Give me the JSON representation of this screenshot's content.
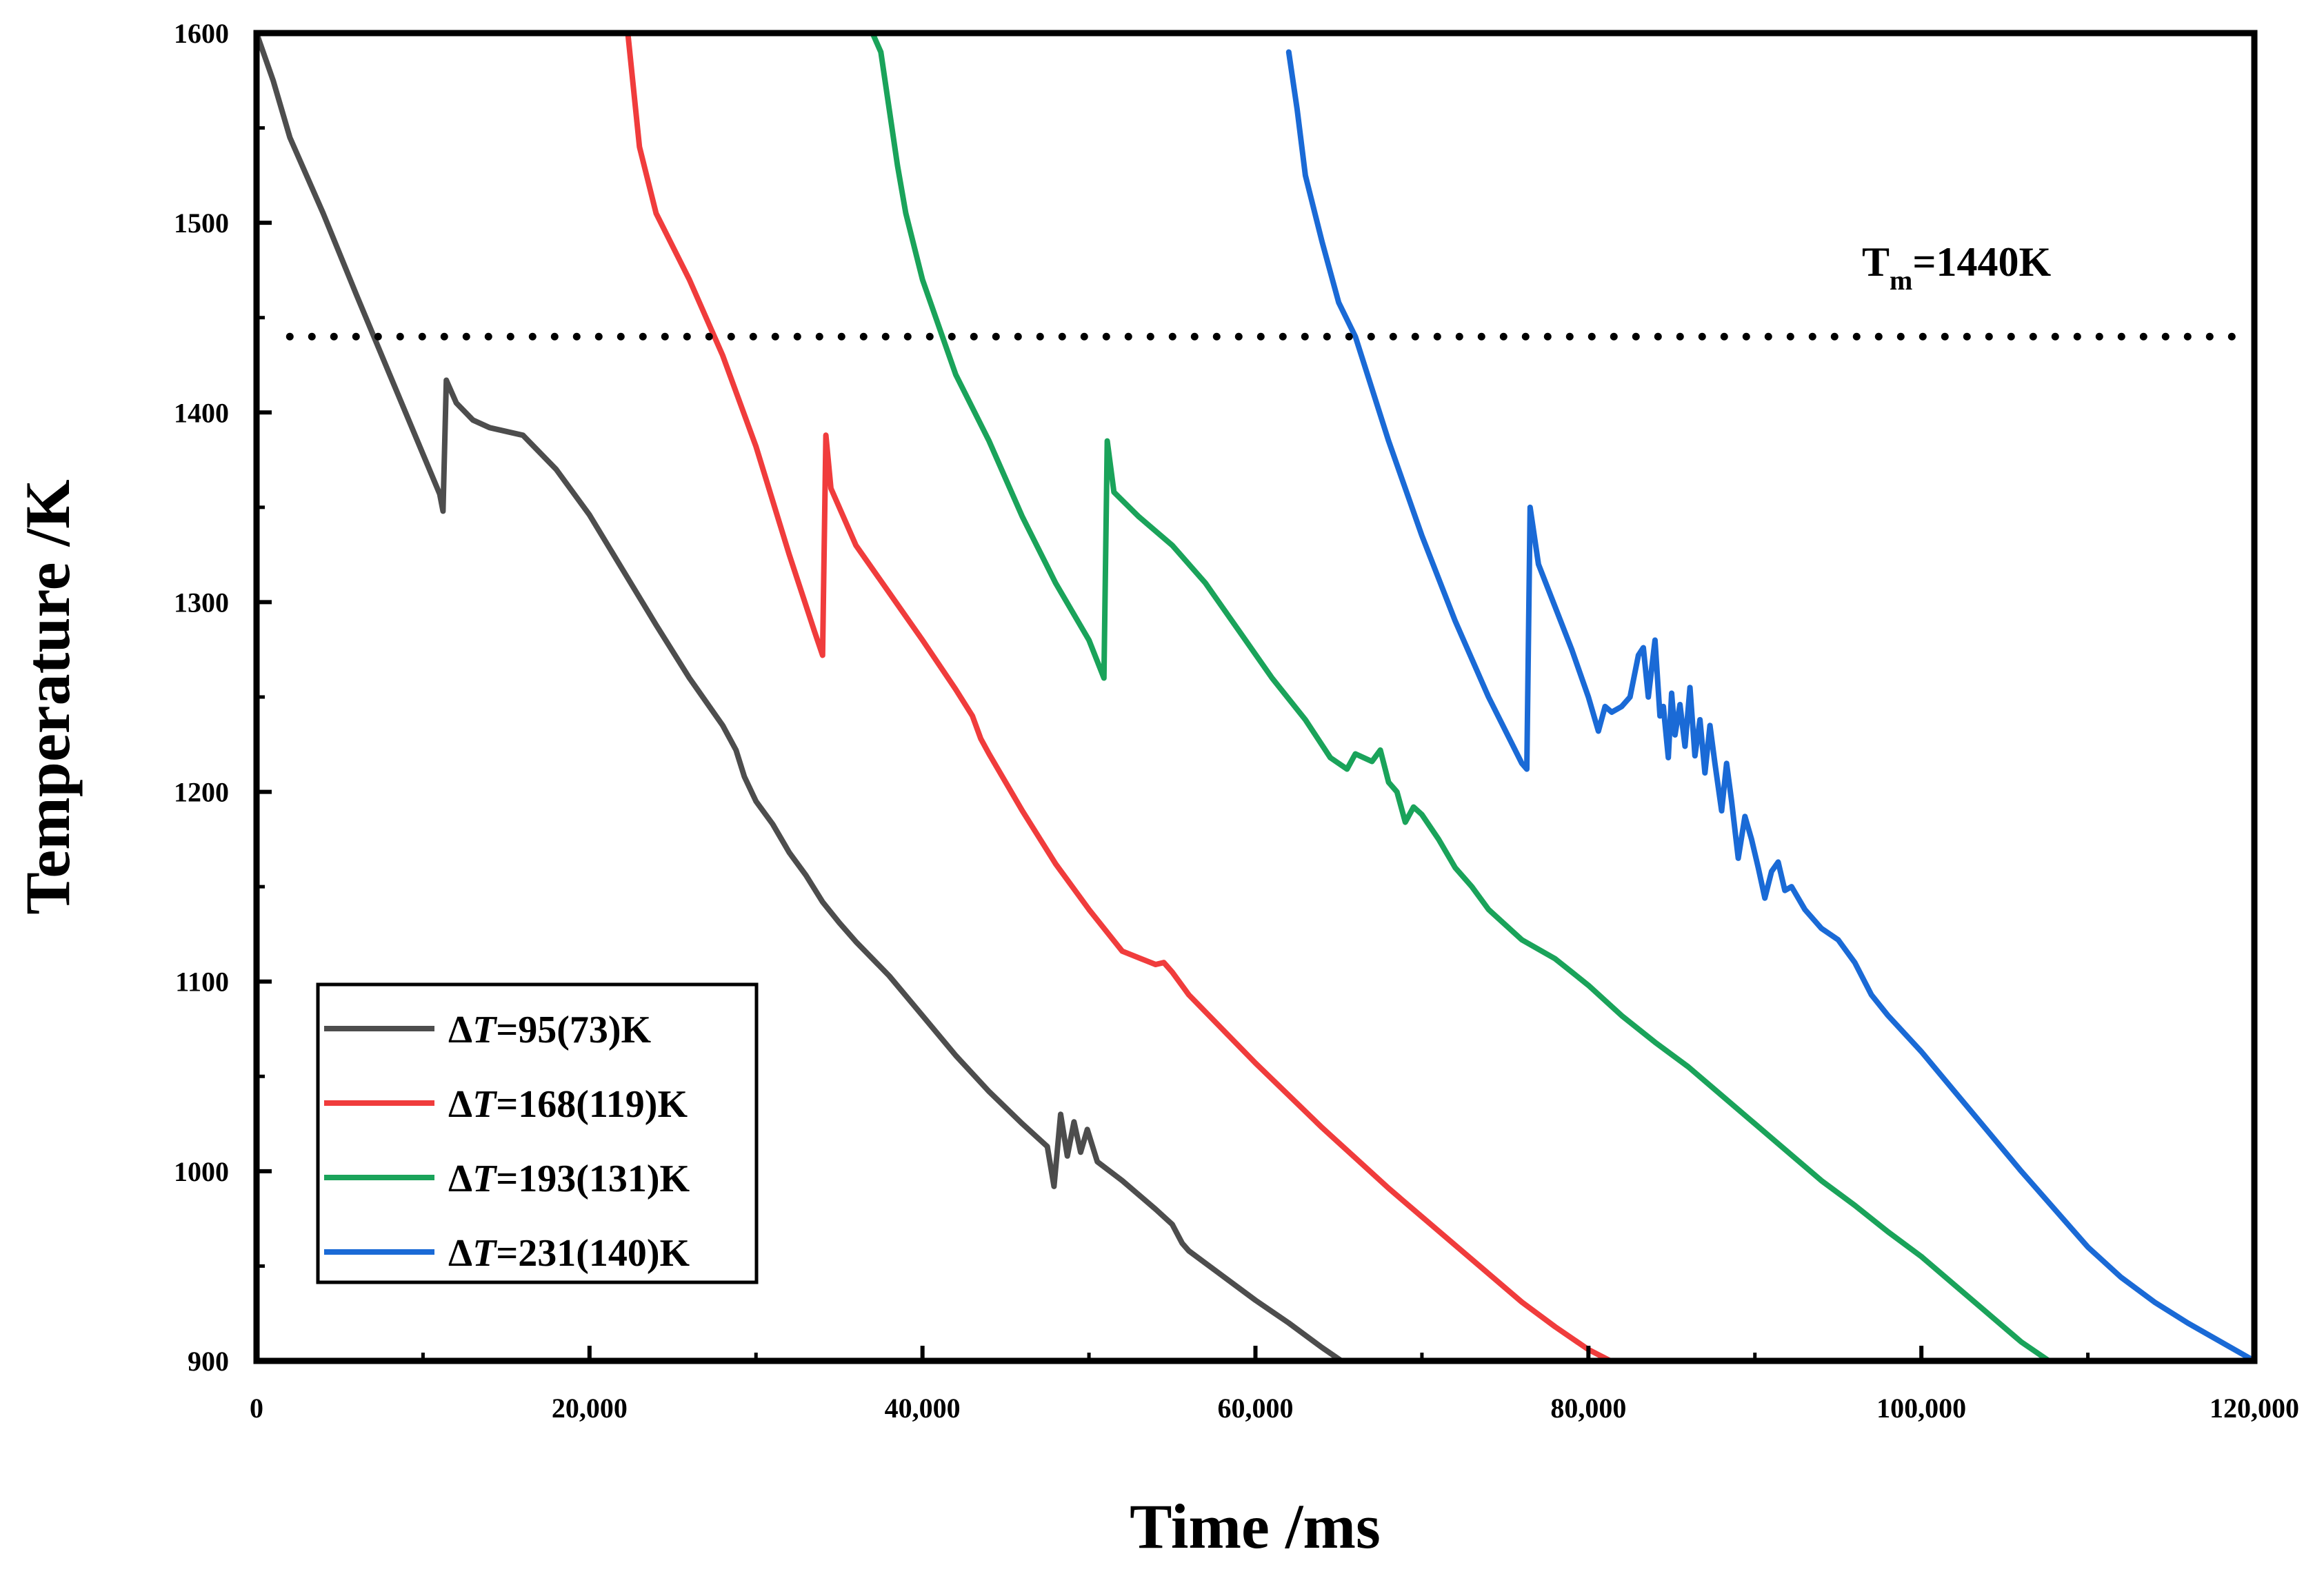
{
  "chart_data": {
    "type": "line",
    "xlabel": "Time /ms",
    "ylabel": "Temperature /K",
    "xlim": [
      0,
      120000
    ],
    "ylim": [
      900,
      1600
    ],
    "x_ticks": [
      0,
      20000,
      40000,
      60000,
      80000,
      100000,
      120000
    ],
    "x_tick_labels": [
      "0",
      "20,000",
      "40,000",
      "60,000",
      "80,000",
      "100,000",
      "120,000"
    ],
    "y_ticks": [
      900,
      1000,
      1100,
      1200,
      1300,
      1400,
      1500,
      1600
    ],
    "y_tick_labels": [
      "900",
      "1000",
      "1100",
      "1200",
      "1300",
      "1400",
      "1500",
      "1600"
    ],
    "grid": false,
    "legend_position": "bottom-left",
    "reference_line": {
      "y": 1440,
      "style": "dotted",
      "label_main": "T",
      "label_sub": "m",
      "label_rest": "=1440K"
    },
    "series": [
      {
        "name": "ΔT=95(73)K",
        "legend_prefix": "Δ",
        "legend_italic": "T",
        "legend_suffix": "=95(73)K",
        "color": "#4d4d4d",
        "x": [
          0,
          1000,
          2000,
          4000,
          6000,
          8000,
          10000,
          11000,
          11200,
          11400,
          12000,
          13000,
          14000,
          16000,
          18000,
          20000,
          22000,
          24000,
          26000,
          28000,
          28800,
          29300,
          30000,
          31000,
          32000,
          33000,
          34000,
          35000,
          36000,
          38000,
          40000,
          42000,
          44000,
          46000,
          47500,
          47900,
          48300,
          48700,
          49100,
          49500,
          49900,
          50500,
          52000,
          54000,
          55000,
          55600,
          56000,
          58000,
          60000,
          62000,
          64000,
          66000,
          67000
        ],
        "y": [
          1600,
          1575,
          1545,
          1505,
          1462,
          1420,
          1378,
          1357,
          1348,
          1417,
          1405,
          1396,
          1392,
          1388,
          1370,
          1346,
          1317,
          1288,
          1260,
          1235,
          1222,
          1208,
          1195,
          1183,
          1168,
          1156,
          1142,
          1131,
          1121,
          1103,
          1082,
          1061,
          1042,
          1025,
          1013,
          992,
          1030,
          1008,
          1026,
          1010,
          1022,
          1005,
          995,
          980,
          972,
          962,
          958,
          945,
          932,
          920,
          907,
          895,
          889
        ]
      },
      {
        "name": "ΔT=168(119)K",
        "legend_prefix": "Δ",
        "legend_italic": "T",
        "legend_suffix": "=168(119)K",
        "color": "#f03c3c",
        "x": [
          22300,
          23000,
          24000,
          26000,
          28000,
          30000,
          32000,
          33500,
          34000,
          34200,
          34500,
          36000,
          38000,
          40000,
          42000,
          43000,
          43500,
          44000,
          46000,
          48000,
          50000,
          52000,
          54000,
          54500,
          55000,
          56000,
          58000,
          60000,
          62000,
          64000,
          66000,
          68000,
          70000,
          72000,
          74000,
          76000,
          78000,
          80000,
          82000,
          83000
        ],
        "y": [
          1600,
          1540,
          1505,
          1470,
          1430,
          1382,
          1325,
          1285,
          1272,
          1388,
          1360,
          1330,
          1305,
          1280,
          1254,
          1240,
          1228,
          1220,
          1190,
          1162,
          1138,
          1116,
          1109,
          1110,
          1105,
          1093,
          1075,
          1057,
          1040,
          1023,
          1007,
          991,
          976,
          961,
          946,
          931,
          918,
          906,
          897,
          893
        ]
      },
      {
        "name": "ΔT=193(131)K",
        "legend_prefix": "Δ",
        "legend_italic": "T",
        "legend_suffix": "=193(131)K",
        "color": "#1aa35a",
        "x": [
          37000,
          37500,
          38000,
          38500,
          39000,
          40000,
          42000,
          44000,
          46000,
          48000,
          50000,
          50900,
          51100,
          51500,
          53000,
          55000,
          57000,
          59000,
          61000,
          63000,
          64500,
          65500,
          66000,
          67000,
          67500,
          68000,
          68500,
          69000,
          69500,
          70000,
          71000,
          72000,
          73000,
          74000,
          76000,
          78000,
          80000,
          82000,
          84000,
          86000,
          88000,
          90000,
          92000,
          94000,
          96000,
          98000,
          100000,
          102000,
          104000,
          106000,
          108000,
          110000,
          112000
        ],
        "y": [
          1600,
          1590,
          1560,
          1530,
          1505,
          1470,
          1420,
          1385,
          1345,
          1310,
          1280,
          1260,
          1385,
          1358,
          1345,
          1330,
          1310,
          1285,
          1260,
          1238,
          1218,
          1212,
          1220,
          1216,
          1222,
          1205,
          1200,
          1184,
          1192,
          1188,
          1175,
          1160,
          1150,
          1138,
          1122,
          1112,
          1098,
          1082,
          1068,
          1055,
          1040,
          1025,
          1010,
          995,
          982,
          968,
          955,
          940,
          925,
          910,
          898,
          888,
          880
        ]
      },
      {
        "name": "ΔT=231(140)K",
        "legend_prefix": "Δ",
        "legend_italic": "T",
        "legend_suffix": "=231(140)K",
        "color": "#1a6ad6",
        "x": [
          62000,
          62500,
          63000,
          64000,
          65000,
          66000,
          68000,
          70000,
          72000,
          74000,
          76000,
          76300,
          76500,
          77000,
          79000,
          80000,
          80600,
          81000,
          81400,
          82000,
          82500,
          83000,
          83300,
          83600,
          84000,
          84300,
          84500,
          84800,
          85000,
          85200,
          85500,
          85800,
          86100,
          86400,
          86700,
          87000,
          87300,
          87600,
          88000,
          88300,
          88600,
          89000,
          89400,
          89800,
          90200,
          90600,
          91000,
          91400,
          91800,
          92200,
          93000,
          94000,
          95000,
          96000,
          97000,
          98000,
          100000,
          102000,
          104000,
          106000,
          108000,
          110000,
          112000,
          114000,
          116000,
          118000,
          120000
        ],
        "y": [
          1590,
          1560,
          1525,
          1490,
          1458,
          1440,
          1385,
          1335,
          1290,
          1250,
          1215,
          1212,
          1350,
          1320,
          1275,
          1250,
          1232,
          1245,
          1242,
          1245,
          1250,
          1272,
          1276,
          1250,
          1280,
          1240,
          1245,
          1218,
          1252,
          1230,
          1246,
          1224,
          1255,
          1219,
          1238,
          1210,
          1235,
          1215,
          1190,
          1215,
          1195,
          1165,
          1187,
          1175,
          1160,
          1144,
          1158,
          1163,
          1148,
          1150,
          1138,
          1128,
          1122,
          1110,
          1093,
          1082,
          1063,
          1042,
          1021,
          1000,
          980,
          960,
          944,
          931,
          920,
          910,
          900
        ]
      }
    ]
  }
}
